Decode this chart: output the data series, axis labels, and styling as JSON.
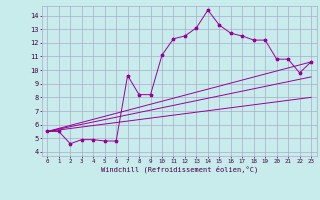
{
  "xlabel": "Windchill (Refroidissement éolien,°C)",
  "background_color": "#c8ecec",
  "line_color": "#990099",
  "grid_color": "#aaaacc",
  "xlim": [
    -0.5,
    23.5
  ],
  "ylim": [
    3.7,
    14.7
  ],
  "xticks": [
    0,
    1,
    2,
    3,
    4,
    5,
    6,
    7,
    8,
    9,
    10,
    11,
    12,
    13,
    14,
    15,
    16,
    17,
    18,
    19,
    20,
    21,
    22,
    23
  ],
  "yticks": [
    4,
    5,
    6,
    7,
    8,
    9,
    10,
    11,
    12,
    13,
    14
  ],
  "lines": [
    {
      "x": [
        0,
        1,
        2,
        3,
        4,
        5,
        6,
        7,
        8,
        9,
        10,
        11,
        12,
        13,
        14,
        15,
        16,
        17,
        18,
        19,
        20,
        21,
        22,
        23
      ],
      "y": [
        5.5,
        5.5,
        4.6,
        4.9,
        4.9,
        4.8,
        4.8,
        9.6,
        8.2,
        8.2,
        11.1,
        12.3,
        12.5,
        13.1,
        14.4,
        13.3,
        12.7,
        12.5,
        12.2,
        12.2,
        10.8,
        10.8,
        9.8,
        10.6
      ],
      "marker": true
    },
    {
      "x": [
        0,
        23
      ],
      "y": [
        5.5,
        10.6
      ],
      "marker": false
    },
    {
      "x": [
        0,
        23
      ],
      "y": [
        5.5,
        9.5
      ],
      "marker": false
    },
    {
      "x": [
        0,
        23
      ],
      "y": [
        5.5,
        8.0
      ],
      "marker": false
    }
  ]
}
